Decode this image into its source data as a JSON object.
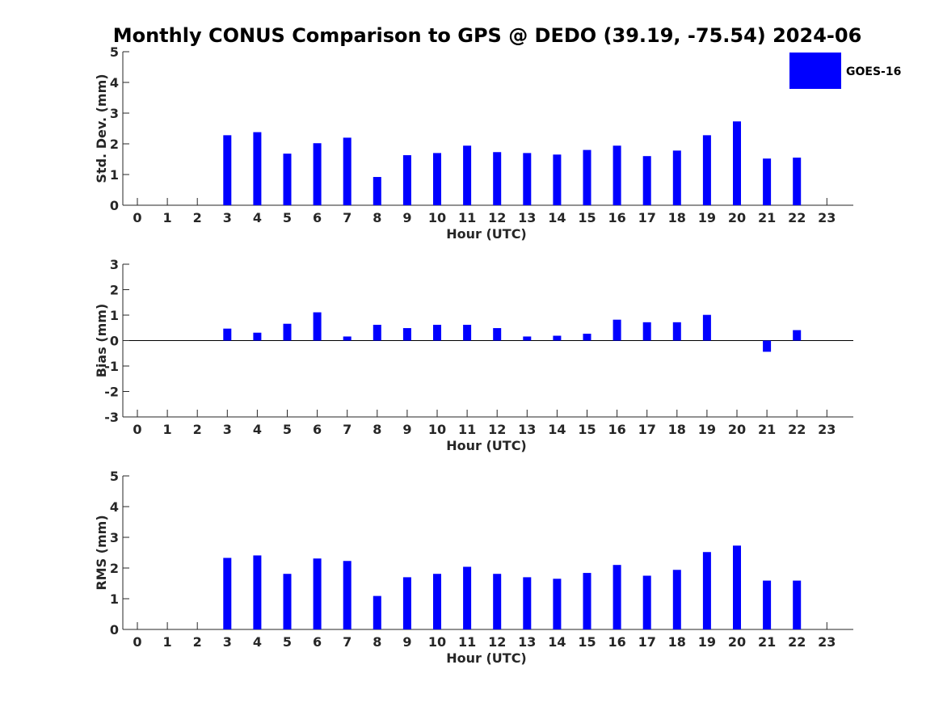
{
  "chart_data": {
    "title": "Monthly CONUS Comparison to GPS @ DEDO (39.19, -75.54) 2024-06",
    "legend": {
      "label": "GOES-16",
      "color": "#0000ff",
      "placement": "top-right"
    },
    "panels": [
      {
        "type": "bar",
        "ylabel": "Std. Dev. (mm)",
        "xlabel": "Hour (UTC)",
        "ylim": [
          0,
          5
        ],
        "yticks": [
          0,
          1,
          2,
          3,
          4,
          5
        ],
        "categories": [
          "0",
          "1",
          "2",
          "3",
          "4",
          "5",
          "6",
          "7",
          "8",
          "9",
          "10",
          "11",
          "12",
          "13",
          "14",
          "15",
          "16",
          "17",
          "18",
          "19",
          "20",
          "21",
          "22",
          "23"
        ],
        "values": [
          null,
          null,
          null,
          2.28,
          2.38,
          1.68,
          2.02,
          2.2,
          0.92,
          1.63,
          1.7,
          1.94,
          1.73,
          1.7,
          1.65,
          1.8,
          1.94,
          1.6,
          1.78,
          2.28,
          2.73,
          1.52,
          1.55,
          null
        ],
        "baseline": 0
      },
      {
        "type": "bar",
        "ylabel": "Bias (mm)",
        "xlabel": "Hour (UTC)",
        "ylim": [
          -3,
          3
        ],
        "yticks": [
          -3,
          -2,
          -1,
          0,
          1,
          2,
          3
        ],
        "categories": [
          "0",
          "1",
          "2",
          "3",
          "4",
          "5",
          "6",
          "7",
          "8",
          "9",
          "10",
          "11",
          "12",
          "13",
          "14",
          "15",
          "16",
          "17",
          "18",
          "19",
          "20",
          "21",
          "22",
          "23"
        ],
        "values": [
          null,
          null,
          null,
          0.47,
          0.31,
          0.66,
          1.11,
          0.16,
          0.62,
          0.49,
          0.62,
          0.62,
          0.49,
          0.16,
          0.19,
          0.27,
          0.82,
          0.72,
          0.72,
          1.01,
          null,
          -0.44,
          0.41,
          null
        ],
        "baseline": 0,
        "zero_line": true
      },
      {
        "type": "bar",
        "ylabel": "RMS (mm)",
        "xlabel": "Hour (UTC)",
        "ylim": [
          0,
          5
        ],
        "yticks": [
          0,
          1,
          2,
          3,
          4,
          5
        ],
        "categories": [
          "0",
          "1",
          "2",
          "3",
          "4",
          "5",
          "6",
          "7",
          "8",
          "9",
          "10",
          "11",
          "12",
          "13",
          "14",
          "15",
          "16",
          "17",
          "18",
          "19",
          "20",
          "21",
          "22",
          "23"
        ],
        "values": [
          null,
          null,
          null,
          2.33,
          2.41,
          1.81,
          2.31,
          2.23,
          1.09,
          1.7,
          1.81,
          2.04,
          1.81,
          1.7,
          1.65,
          1.84,
          2.1,
          1.75,
          1.94,
          2.52,
          2.73,
          1.59,
          1.59,
          null
        ],
        "baseline": 0
      }
    ]
  }
}
